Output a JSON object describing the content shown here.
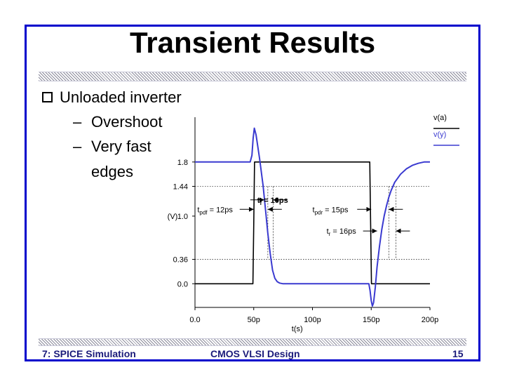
{
  "slide": {
    "title": "Transient Results",
    "bullet": "Unloaded inverter",
    "sub1_dash": "–",
    "sub1": "Overshoot",
    "sub2_dash": "–",
    "sub2": "Very fast",
    "sub2_cont": "edges"
  },
  "footer": {
    "left": "7: SPICE Simulation",
    "center": "CMOS VLSI Design",
    "right": "15"
  },
  "colors": {
    "frame": "#0000cc",
    "va": "#000000",
    "vy": "#3a3ad0"
  },
  "chart_data": {
    "type": "line",
    "title": "",
    "xlabel": "t(s)",
    "ylabel": "(V)",
    "xlim": [
      0,
      200
    ],
    "ylim": [
      -0.35,
      2.4
    ],
    "x_ticks": [
      "0.0",
      "50p",
      "100p",
      "150p",
      "200p"
    ],
    "x_tick_values": [
      0,
      50,
      100,
      150,
      200
    ],
    "y_ticks": [
      "0.0",
      "0.36",
      "1.0",
      "1.44",
      "1.8"
    ],
    "y_tick_values": [
      0,
      0.36,
      1.0,
      1.44,
      1.8
    ],
    "legend": [
      "v(a)",
      "v(y)"
    ],
    "legend_position": "top-right",
    "series": [
      {
        "name": "v(a)",
        "x": [
          0,
          49.3,
          50,
          50.7,
          148.8,
          149.5,
          150.2,
          200
        ],
        "y": [
          0,
          0,
          0.9,
          1.8,
          1.8,
          0.9,
          0,
          0
        ]
      },
      {
        "name": "v(y)",
        "x": [
          0,
          47,
          48.5,
          49.5,
          50.5,
          52,
          55,
          58,
          60,
          62,
          64,
          66,
          68,
          70,
          72,
          75,
          80,
          90,
          100,
          120,
          140,
          148,
          149,
          150,
          151,
          152,
          153.5,
          155,
          157,
          159,
          161,
          163,
          165,
          167,
          170,
          175,
          180,
          185,
          190,
          195,
          200
        ],
        "y": [
          1.8,
          1.8,
          1.9,
          2.15,
          2.3,
          2.2,
          1.85,
          1.45,
          1.1,
          0.75,
          0.45,
          0.2,
          0.08,
          0.03,
          0.01,
          0,
          0,
          0,
          0,
          0,
          0,
          0,
          -0.1,
          -0.25,
          -0.33,
          -0.28,
          -0.05,
          0.25,
          0.55,
          0.8,
          1.0,
          1.15,
          1.28,
          1.38,
          1.5,
          1.62,
          1.7,
          1.75,
          1.78,
          1.8,
          1.8
        ]
      }
    ],
    "annotations": [
      {
        "label": "t",
        "sub": "f",
        "suffix": " = 10ps",
        "x": 53,
        "y": 1.24,
        "from_x": 59,
        "to_x": 66.5,
        "bold": true
      },
      {
        "label": "t",
        "sub": "pdf",
        "suffix": " = 12ps",
        "x": 2,
        "y": 1.1,
        "from_x": 50,
        "to_x": 62,
        "bold": false
      },
      {
        "label": "t",
        "sub": "pdr",
        "suffix": " = 15ps",
        "x": 100,
        "y": 1.1,
        "from_x": 150,
        "to_x": 165,
        "bold": false
      },
      {
        "label": "t",
        "sub": "r",
        "suffix": " = 16ps",
        "x": 112,
        "y": 0.78,
        "from_x": 155,
        "to_x": 171,
        "bold": false
      }
    ],
    "reference_lines": [
      1.44,
      0.36
    ]
  }
}
